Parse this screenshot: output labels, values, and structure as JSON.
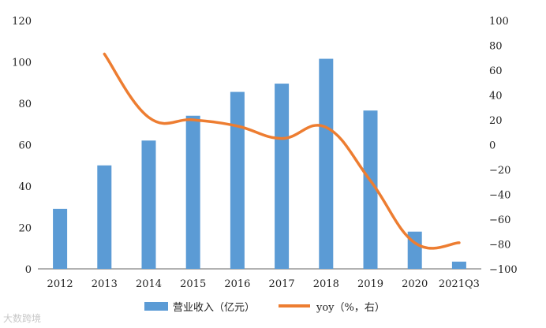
{
  "chart_data": {
    "type": "bar+line",
    "categories": [
      "2012",
      "2013",
      "2014",
      "2015",
      "2016",
      "2017",
      "2018",
      "2019",
      "2020",
      "2021Q3"
    ],
    "series": [
      {
        "name": "营业收入（亿元）",
        "type": "bar",
        "axis": "left",
        "color": "#5b9bd5",
        "values": [
          29,
          50,
          62,
          74,
          85.5,
          89.5,
          101.5,
          76.5,
          18,
          3.5
        ]
      },
      {
        "name": "yoy（%，右）",
        "type": "line",
        "axis": "right",
        "color": "#ed7d31",
        "values": [
          null,
          73,
          22,
          20,
          15,
          5,
          14,
          -29,
          -79,
          -79
        ]
      }
    ],
    "left_axis": {
      "min": 0,
      "max": 120,
      "ticks": [
        0,
        20,
        40,
        60,
        80,
        100,
        120
      ]
    },
    "right_axis": {
      "min": -100,
      "max": 100,
      "ticks": [
        -100,
        -80,
        -60,
        -40,
        -20,
        0,
        20,
        40,
        60,
        80,
        100
      ]
    },
    "grid": false,
    "legend_position": "bottom"
  },
  "watermark": "大数跨境"
}
